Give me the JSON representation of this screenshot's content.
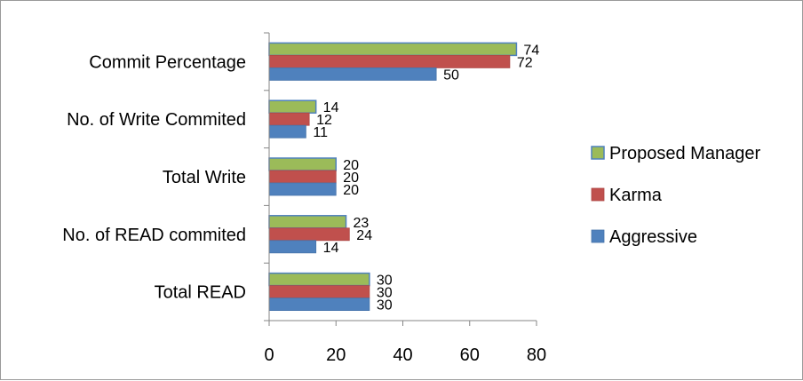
{
  "chart_data": {
    "type": "bar",
    "orientation": "horizontal",
    "categories": [
      "Commit Percentage",
      "No. of Write Commited",
      "Total Write",
      "No. of READ commited",
      "Total READ"
    ],
    "series": [
      {
        "name": "Proposed Manager",
        "color": "#9bbb59",
        "values": [
          74,
          14,
          20,
          23,
          30
        ]
      },
      {
        "name": "Karma",
        "color": "#c0504d",
        "values": [
          72,
          12,
          20,
          24,
          30
        ]
      },
      {
        "name": "Aggressive",
        "color": "#4f81bd",
        "values": [
          50,
          11,
          20,
          14,
          30
        ]
      }
    ],
    "xticks": [
      "0",
      "20",
      "40",
      "60",
      "80"
    ],
    "xlim": [
      0,
      80
    ],
    "title": "",
    "xlabel": "",
    "ylabel": "",
    "grid": false,
    "data_labels": true,
    "legend_position": "right"
  }
}
